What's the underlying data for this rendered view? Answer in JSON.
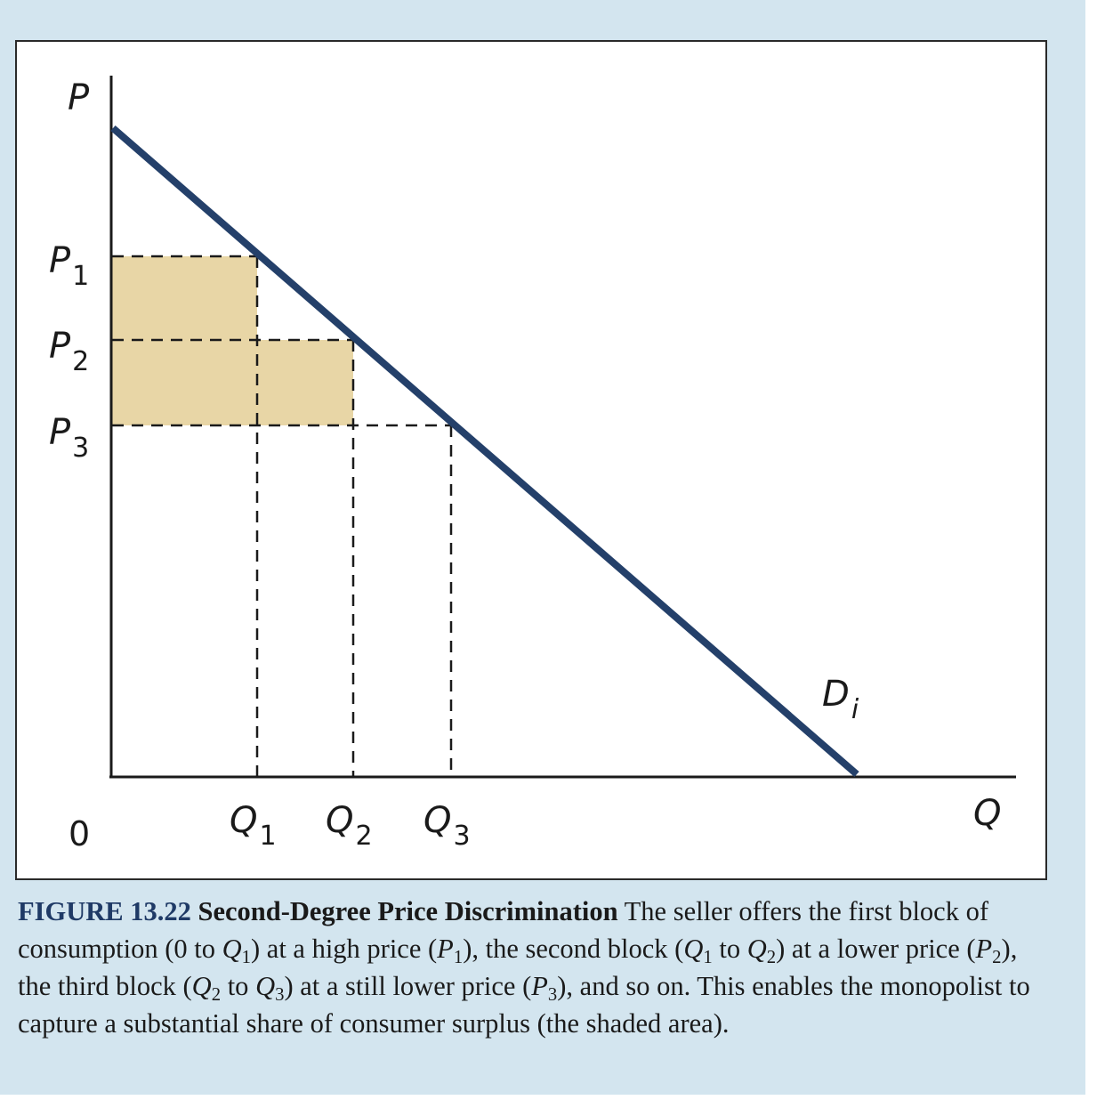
{
  "colors": {
    "panel_background": "#d3e5ef",
    "demand_line": "#24406a",
    "shaded_area": "#e8d6a6",
    "figure_number": "#1f3a66"
  },
  "diagram": {
    "axis_labels": {
      "y": "P",
      "x": "Q",
      "origin": "0"
    },
    "price_labels": [
      {
        "base": "P",
        "sub": "1"
      },
      {
        "base": "P",
        "sub": "2"
      },
      {
        "base": "P",
        "sub": "3"
      }
    ],
    "quantity_labels": [
      {
        "base": "Q",
        "sub": "1"
      },
      {
        "base": "Q",
        "sub": "2"
      },
      {
        "base": "Q",
        "sub": "3"
      }
    ],
    "curve_label": {
      "base": "D",
      "sub": "i"
    },
    "shaded_region_meaning": "consumer surplus captured"
  },
  "caption": {
    "figure_number": "FIGURE 13.22",
    "title": "Second-Degree Price Discrimination",
    "segments": [
      {
        "t": " The seller offers the first block of consumption (0 to "
      },
      {
        "t": "Q",
        "i": true
      },
      {
        "t": "1",
        "sub": true
      },
      {
        "t": ") at a high price ("
      },
      {
        "t": "P",
        "i": true
      },
      {
        "t": "1",
        "sub": true
      },
      {
        "t": "), the second block ("
      },
      {
        "t": "Q",
        "i": true
      },
      {
        "t": "1",
        "sub": true
      },
      {
        "t": " to "
      },
      {
        "t": "Q",
        "i": true
      },
      {
        "t": "2",
        "sub": true
      },
      {
        "t": ") at a lower price ("
      },
      {
        "t": "P",
        "i": true
      },
      {
        "t": "2",
        "sub": true
      },
      {
        "t": "), the third block ("
      },
      {
        "t": "Q",
        "i": true
      },
      {
        "t": "2",
        "sub": true
      },
      {
        "t": " to "
      },
      {
        "t": "Q",
        "i": true
      },
      {
        "t": "3",
        "sub": true
      },
      {
        "t": ") at a still lower price ("
      },
      {
        "t": "P",
        "i": true
      },
      {
        "t": "3",
        "sub": true
      },
      {
        "t": "), and so on. This enables the monopolist to capture a substantial share of consumer surplus (the shaded area)."
      }
    ]
  }
}
